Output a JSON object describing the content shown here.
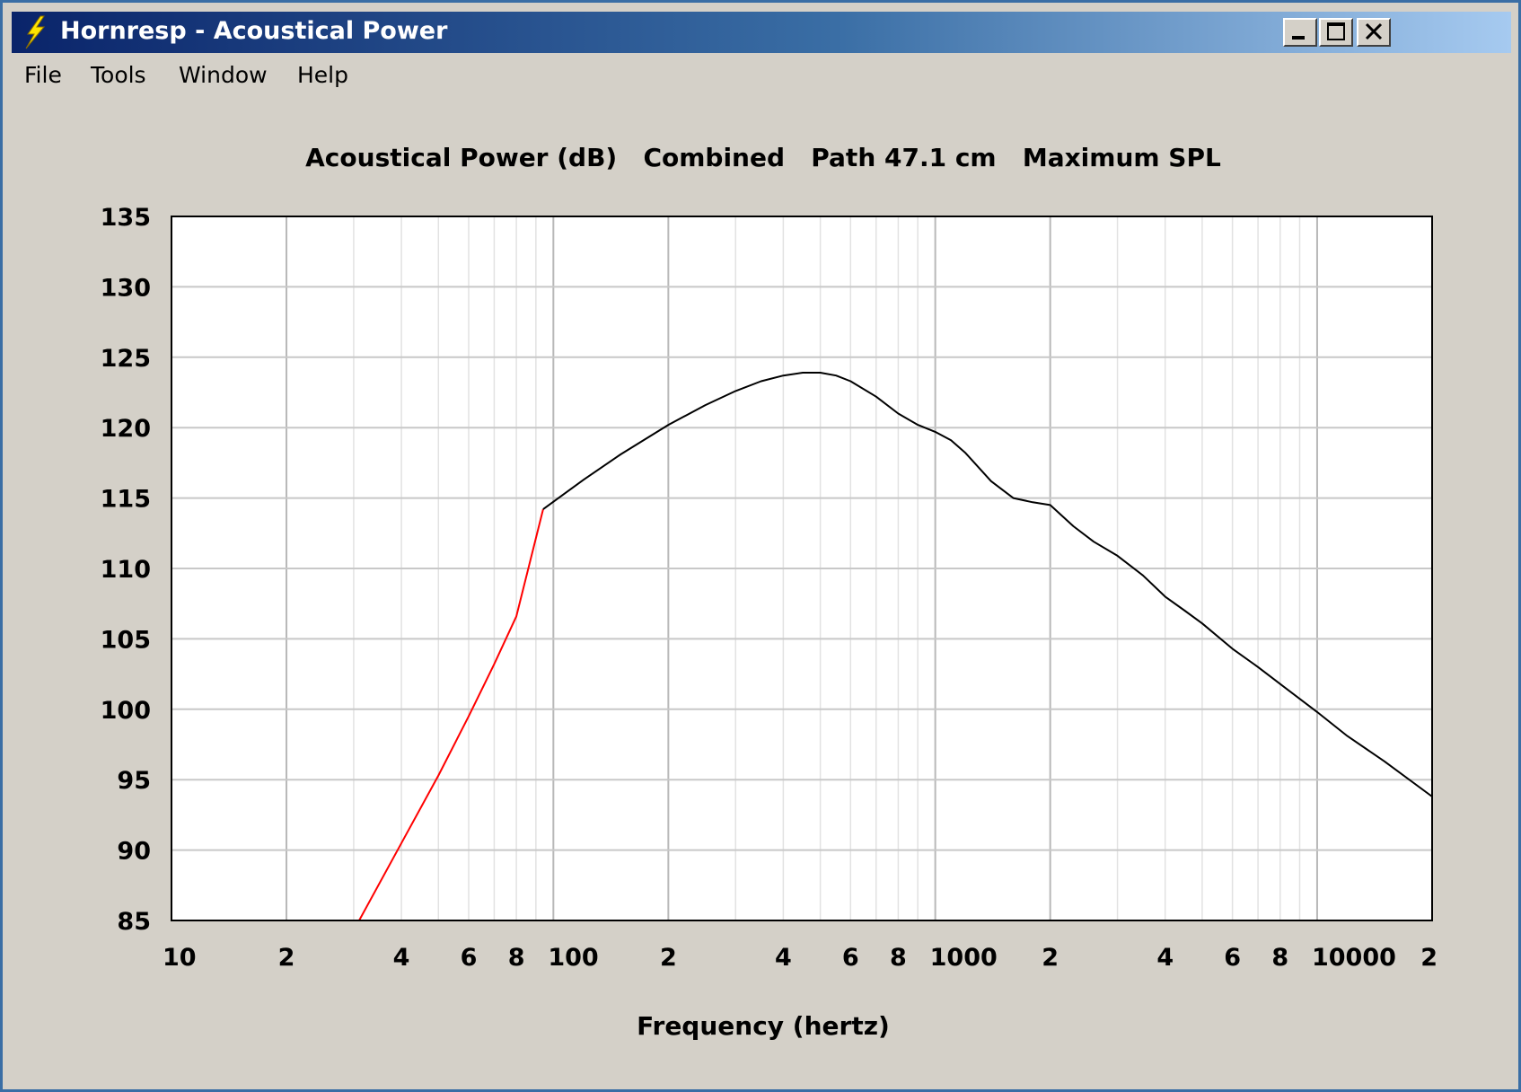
{
  "window": {
    "title": "Hornresp - Acoustical Power"
  },
  "menu": {
    "file": "File",
    "tools": "Tools",
    "window": "Window",
    "help": "Help"
  },
  "chart_data": {
    "type": "line",
    "title": "Acoustical Power (dB)   Combined   Path 47.1 cm   Maximum SPL",
    "xlabel": "Frequency (hertz)",
    "ylabel": "",
    "x_scale": "log",
    "xlim": [
      10,
      20000
    ],
    "ylim": [
      85,
      135
    ],
    "grid": true,
    "y_ticks": [
      "135",
      "130",
      "125",
      "120",
      "115",
      "110",
      "105",
      "100",
      "95",
      "90",
      "85"
    ],
    "x_ticks": [
      {
        "v": 10,
        "label": "10"
      },
      {
        "v": 20,
        "label": "2"
      },
      {
        "v": 40,
        "label": "4"
      },
      {
        "v": 60,
        "label": "6"
      },
      {
        "v": 80,
        "label": "8"
      },
      {
        "v": 100,
        "label": "100"
      },
      {
        "v": 200,
        "label": "2"
      },
      {
        "v": 400,
        "label": "4"
      },
      {
        "v": 600,
        "label": "6"
      },
      {
        "v": 800,
        "label": "8"
      },
      {
        "v": 1000,
        "label": "1000"
      },
      {
        "v": 2000,
        "label": "2"
      },
      {
        "v": 4000,
        "label": "4"
      },
      {
        "v": 6000,
        "label": "6"
      },
      {
        "v": 8000,
        "label": "8"
      },
      {
        "v": 10000,
        "label": "10000"
      },
      {
        "v": 20000,
        "label": "2"
      }
    ],
    "series": [
      {
        "color": "#ff0000",
        "x": [
          31,
          40,
          50,
          60,
          70,
          80,
          94
        ],
        "y": [
          85,
          90.5,
          95.3,
          99.5,
          103.2,
          106.6,
          114.2
        ]
      },
      {
        "color": "#000000",
        "x": [
          94,
          120,
          150,
          200,
          250,
          300,
          350,
          400,
          450,
          500,
          550,
          600,
          700,
          800,
          900,
          1000,
          1100,
          1200,
          1400,
          1600,
          1800,
          2000,
          2300,
          2600,
          3000,
          3500,
          4000,
          4500,
          5000,
          6000,
          7000,
          8000,
          10000,
          12000,
          15000,
          20000
        ],
        "y": [
          114.2,
          116.3,
          118.1,
          120.2,
          121.6,
          122.6,
          123.3,
          123.7,
          123.9,
          123.9,
          123.7,
          123.3,
          122.2,
          121.0,
          120.2,
          119.7,
          119.1,
          118.2,
          116.2,
          115.0,
          114.7,
          114.5,
          113.0,
          111.9,
          110.9,
          109.5,
          108.0,
          107.0,
          106.1,
          104.3,
          103.0,
          101.8,
          99.8,
          98.1,
          96.3,
          93.8
        ]
      }
    ]
  }
}
